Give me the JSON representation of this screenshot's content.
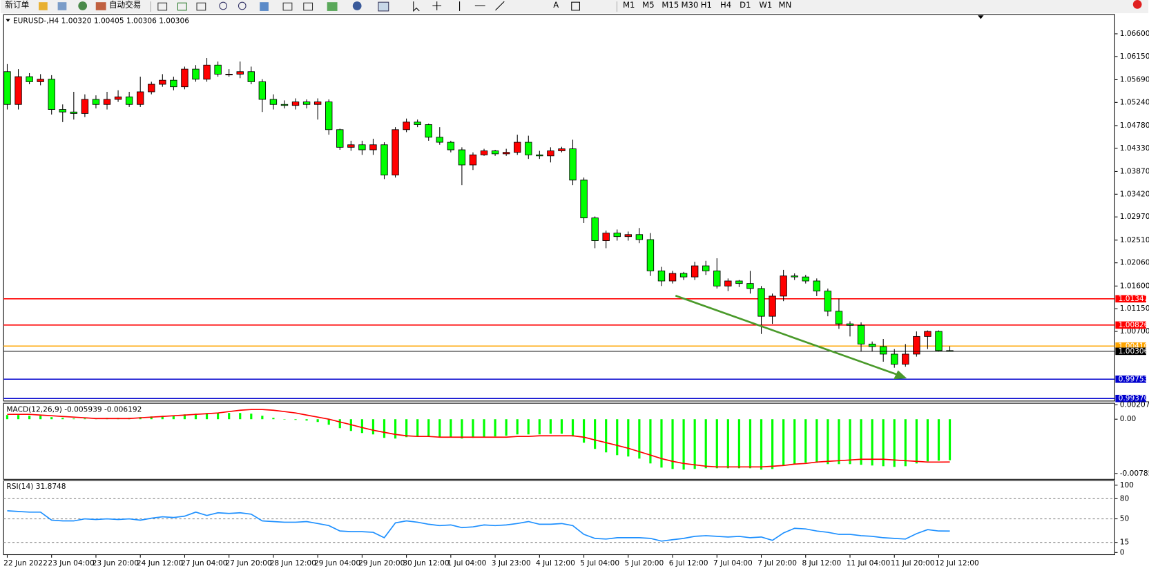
{
  "toolbar": {
    "new_order": "新订单",
    "auto_trading": "自动交易",
    "timeframes": [
      "M1",
      "M5",
      "M15",
      "M30",
      "H1",
      "H4",
      "D1",
      "W1",
      "MN"
    ]
  },
  "chart_data": [
    {
      "type": "candlestick",
      "title": "EURUSD-,H4  1.00320 1.00405 1.00306 1.00306",
      "up_color": "#ff0000",
      "down_color": "#00ff00",
      "categories": [
        "22 Jun 2022",
        null,
        null,
        null,
        "23 Jun 04:00",
        null,
        null,
        null,
        "23 Jun 20:00",
        null,
        null,
        null,
        "24 Jun 12:00",
        null,
        null,
        null,
        "27 Jun 04:00",
        null,
        null,
        null,
        "27 Jun 20:00",
        null,
        null,
        null,
        "28 Jun 12:00",
        null,
        null,
        null,
        "29 Jun 04:00",
        null,
        null,
        null,
        "29 Jun 20:00",
        null,
        null,
        null,
        "30 Jun 12:00",
        null,
        null,
        null,
        "1 Jul 04:00",
        null,
        null,
        null,
        "3 Jul 23:00",
        null,
        null,
        null,
        "4 Jul 12:00",
        null,
        null,
        null,
        "5 Jul 04:00",
        null,
        null,
        null,
        "5 Jul 20:00",
        null,
        null,
        null,
        "6 Jul 12:00",
        null,
        null,
        null,
        "7 Jul 04:00",
        null,
        null,
        null,
        "7 Jul 20:00",
        null,
        null,
        null,
        "8 Jul 12:00",
        null,
        null,
        null,
        "11 Jul 04:00",
        null,
        null,
        null,
        "11 Jul 20:00",
        null,
        null,
        null,
        "12 Jul 12:00",
        null
      ],
      "open": [
        1.0585,
        1.052,
        1.0575,
        1.0565,
        1.057,
        1.051,
        1.0505,
        1.0502,
        1.053,
        1.052,
        1.053,
        1.0535,
        1.052,
        1.0545,
        1.056,
        1.0568,
        1.0555,
        1.059,
        1.057,
        1.0598,
        1.058,
        1.058,
        1.0585,
        1.0565,
        1.053,
        1.052,
        1.0518,
        1.0525,
        1.052,
        1.0525,
        1.047,
        1.0435,
        1.044,
        1.043,
        1.044,
        1.038,
        1.047,
        1.0485,
        1.048,
        1.0455,
        1.0445,
        1.043,
        1.04,
        1.042,
        1.0428,
        1.0422,
        1.0425,
        1.0445,
        1.042,
        1.0418,
        1.0428,
        1.0432,
        1.037,
        1.0295,
        1.025,
        1.0265,
        1.0258,
        1.0262,
        1.0252,
        1.019,
        1.017,
        1.0185,
        1.0178,
        1.02,
        1.019,
        1.016,
        1.017,
        1.0165,
        1.0155,
        1.01,
        1.014,
        1.018,
        1.0178,
        1.017,
        1.015,
        1.011,
        1.0085,
        1.0082,
        1.0045,
        1.004,
        1.0025,
        1.0005,
        1.0025,
        1.006,
        1.007,
        1.0032
      ],
      "high": [
        1.06,
        1.059,
        1.0582,
        1.058,
        1.0578,
        1.052,
        1.0545,
        1.054,
        1.0538,
        1.0545,
        1.0548,
        1.0545,
        1.0575,
        1.0565,
        1.058,
        1.0575,
        1.0595,
        1.0598,
        1.0612,
        1.0605,
        1.059,
        1.0605,
        1.0595,
        1.057,
        1.054,
        1.0528,
        1.0532,
        1.053,
        1.0532,
        1.053,
        1.0472,
        1.0448,
        1.0448,
        1.0452,
        1.0445,
        1.0475,
        1.0492,
        1.049,
        1.0482,
        1.0475,
        1.0448,
        1.0435,
        1.0425,
        1.0432,
        1.043,
        1.0432,
        1.046,
        1.0458,
        1.0428,
        1.0435,
        1.0436,
        1.045,
        1.0375,
        1.0298,
        1.027,
        1.0272,
        1.0268,
        1.0275,
        1.0265,
        1.0198,
        1.019,
        1.0188,
        1.0208,
        1.021,
        1.0215,
        1.0175,
        1.0172,
        1.019,
        1.016,
        1.0145,
        1.0192,
        1.0185,
        1.0182,
        1.0175,
        1.0155,
        1.0135,
        1.009,
        1.0088,
        1.005,
        1.0055,
        1.0035,
        1.0045,
        1.007,
        1.0072,
        1.0072,
        1.00405
      ],
      "low": [
        1.051,
        1.051,
        1.056,
        1.0558,
        1.05,
        1.0485,
        1.049,
        1.0495,
        1.0512,
        1.051,
        1.0525,
        1.0515,
        1.0515,
        1.054,
        1.0555,
        1.0548,
        1.055,
        1.0565,
        1.0565,
        1.0575,
        1.0575,
        1.0572,
        1.056,
        1.0505,
        1.051,
        1.0512,
        1.051,
        1.0512,
        1.049,
        1.046,
        1.043,
        1.0428,
        1.042,
        1.042,
        1.0372,
        1.0375,
        1.0465,
        1.0475,
        1.0448,
        1.044,
        1.0425,
        1.036,
        1.039,
        1.0418,
        1.0418,
        1.0418,
        1.042,
        1.0412,
        1.0412,
        1.0405,
        1.0425,
        1.036,
        1.0285,
        1.0235,
        1.0235,
        1.025,
        1.025,
        1.0245,
        1.018,
        1.016,
        1.0165,
        1.0172,
        1.0172,
        1.0182,
        1.0155,
        1.015,
        1.0158,
        1.0145,
        1.0065,
        1.0085,
        1.013,
        1.0172,
        1.0165,
        1.014,
        1.01,
        1.0075,
        1.006,
        1.003,
        1.003,
        1.001,
        0.9998,
        1.0,
        1.002,
        1.0035,
        1.003,
        1.00306
      ],
      "close": [
        1.052,
        1.0575,
        1.0565,
        1.057,
        1.051,
        1.0505,
        1.0502,
        1.053,
        1.052,
        1.053,
        1.0535,
        1.052,
        1.0545,
        1.056,
        1.0568,
        1.0555,
        1.059,
        1.057,
        1.0598,
        1.058,
        1.058,
        1.0585,
        1.0565,
        1.053,
        1.052,
        1.0518,
        1.0525,
        1.052,
        1.0525,
        1.047,
        1.0435,
        1.044,
        1.043,
        1.044,
        1.038,
        1.047,
        1.0485,
        1.048,
        1.0455,
        1.0445,
        1.043,
        1.04,
        1.042,
        1.0428,
        1.0422,
        1.0425,
        1.0445,
        1.042,
        1.0418,
        1.0428,
        1.0432,
        1.037,
        1.0295,
        1.025,
        1.0265,
        1.0258,
        1.0262,
        1.0252,
        1.019,
        1.017,
        1.0185,
        1.0178,
        1.02,
        1.019,
        1.016,
        1.017,
        1.0165,
        1.0155,
        1.01,
        1.014,
        1.018,
        1.0178,
        1.017,
        1.015,
        1.011,
        1.0085,
        1.0082,
        1.0045,
        1.004,
        1.0025,
        1.0005,
        1.0025,
        1.006,
        1.007,
        1.0032,
        1.00306
      ],
      "ylim": [
        0.9932,
        1.0698
      ],
      "yticks": [
        {
          "value": 1.066,
          "label": "1.06600"
        },
        {
          "value": 1.0615,
          "label": "1.06150"
        },
        {
          "value": 1.0569,
          "label": "1.05690"
        },
        {
          "value": 1.0524,
          "label": "1.05240"
        },
        {
          "value": 1.0478,
          "label": "1.04780"
        },
        {
          "value": 1.0433,
          "label": "1.04330"
        },
        {
          "value": 1.0387,
          "label": "1.03870"
        },
        {
          "value": 1.0342,
          "label": "1.03420"
        },
        {
          "value": 1.0297,
          "label": "1.02970"
        },
        {
          "value": 1.0251,
          "label": "1.02510"
        },
        {
          "value": 1.0206,
          "label": "1.02060"
        },
        {
          "value": 1.016,
          "label": "1.01600"
        },
        {
          "value": 1.0115,
          "label": "1.01150"
        },
        {
          "value": 1.007,
          "label": "1.00700"
        }
      ],
      "levels": [
        {
          "value": 1.01347,
          "color": "#ff0000"
        },
        {
          "value": 1.00826,
          "color": "#ff0000"
        },
        {
          "value": 1.0041,
          "label": "1.00410",
          "color": "#ffa500"
        },
        {
          "value": 0.99753,
          "color": "#0000cd"
        },
        {
          "value": 0.9937,
          "label": "0.99370",
          "color": "#0000cd"
        }
      ],
      "price_line_color": "#000000"
    },
    {
      "type": "macd",
      "title": "MACD(12,26,9) -0.005939 -0.006192",
      "histogram_color": "#00ff00",
      "signal_color": "#ff0000",
      "histogram": [
        0.0006,
        0.0006,
        0.0005,
        0.0005,
        0.0003,
        0.0002,
        0.0001,
        0.0001,
        0.0001,
        0.0002,
        0.0002,
        0.0002,
        0.0003,
        0.0004,
        0.0005,
        0.0005,
        0.0007,
        0.0008,
        0.0009,
        0.0009,
        0.0009,
        0.0009,
        0.0008,
        0.0005,
        0.0002,
        0.0,
        -0.0001,
        -0.0002,
        -0.0004,
        -0.0008,
        -0.0013,
        -0.0017,
        -0.002,
        -0.0022,
        -0.0027,
        -0.0028,
        -0.0026,
        -0.0025,
        -0.0025,
        -0.0026,
        -0.0026,
        -0.0028,
        -0.0027,
        -0.0026,
        -0.0025,
        -0.0024,
        -0.0022,
        -0.0022,
        -0.0022,
        -0.0021,
        -0.0021,
        -0.0025,
        -0.0034,
        -0.0043,
        -0.0048,
        -0.0052,
        -0.0054,
        -0.0057,
        -0.0064,
        -0.007,
        -0.0072,
        -0.0073,
        -0.0072,
        -0.0071,
        -0.0071,
        -0.0071,
        -0.0071,
        -0.0071,
        -0.0073,
        -0.0072,
        -0.0067,
        -0.0065,
        -0.0063,
        -0.0063,
        -0.0065,
        -0.0065,
        -0.0065,
        -0.0066,
        -0.0067,
        -0.0068,
        -0.0069,
        -0.0068,
        -0.0064,
        -0.0061,
        -0.006,
        -0.005939
      ],
      "signal": [
        0.0007,
        0.0007,
        0.0007,
        0.0006,
        0.0005,
        0.0004,
        0.0003,
        0.0002,
        0.0001,
        0.0001,
        0.0001,
        0.0001,
        0.0002,
        0.0003,
        0.0004,
        0.0005,
        0.0006,
        0.0007,
        0.0008,
        0.0009,
        0.0011,
        0.0013,
        0.0014,
        0.0014,
        0.0013,
        0.0011,
        0.0009,
        0.0006,
        0.0003,
        0.0,
        -0.0004,
        -0.0008,
        -0.0012,
        -0.0016,
        -0.0019,
        -0.0022,
        -0.0024,
        -0.0025,
        -0.0025,
        -0.0026,
        -0.0026,
        -0.0026,
        -0.0026,
        -0.0026,
        -0.0026,
        -0.0026,
        -0.0025,
        -0.0025,
        -0.0024,
        -0.0024,
        -0.0024,
        -0.0024,
        -0.0026,
        -0.003,
        -0.0034,
        -0.0038,
        -0.0042,
        -0.0047,
        -0.0052,
        -0.0057,
        -0.0061,
        -0.0064,
        -0.0066,
        -0.0068,
        -0.0069,
        -0.0069,
        -0.0069,
        -0.0069,
        -0.0069,
        -0.0068,
        -0.0067,
        -0.0065,
        -0.0064,
        -0.0062,
        -0.0061,
        -0.006,
        -0.0059,
        -0.0058,
        -0.0058,
        -0.0058,
        -0.0059,
        -0.006,
        -0.0061,
        -0.0062,
        -0.0062,
        -0.006192
      ],
      "ylim": [
        -0.0087,
        0.0021
      ],
      "yticks": [
        0.002073,
        {
          "value": 0,
          "label": "0.00"
        },
        -0.007853
      ]
    },
    {
      "type": "rsi",
      "title": "RSI(14) 31.8748",
      "color": "#1e90ff",
      "values": [
        62,
        61,
        60,
        60,
        48,
        47,
        47,
        50,
        49,
        50,
        49,
        50,
        48,
        51,
        53,
        52,
        54,
        60,
        55,
        59,
        58,
        59,
        57,
        47,
        46,
        45,
        45,
        46,
        43,
        40,
        32,
        31,
        31,
        30,
        22,
        44,
        47,
        45,
        42,
        40,
        41,
        37,
        38,
        41,
        40,
        41,
        43,
        46,
        42,
        42,
        43,
        40,
        27,
        21,
        20,
        22,
        22,
        22,
        21,
        17,
        19,
        21,
        24,
        25,
        24,
        23,
        24,
        22,
        23,
        18,
        29,
        36,
        35,
        32,
        30,
        27,
        27,
        25,
        24,
        22,
        21,
        20,
        28,
        34,
        32,
        31.8748
      ],
      "ylim": [
        0,
        100
      ],
      "yticks": [
        100,
        80,
        50,
        15,
        0
      ]
    }
  ]
}
